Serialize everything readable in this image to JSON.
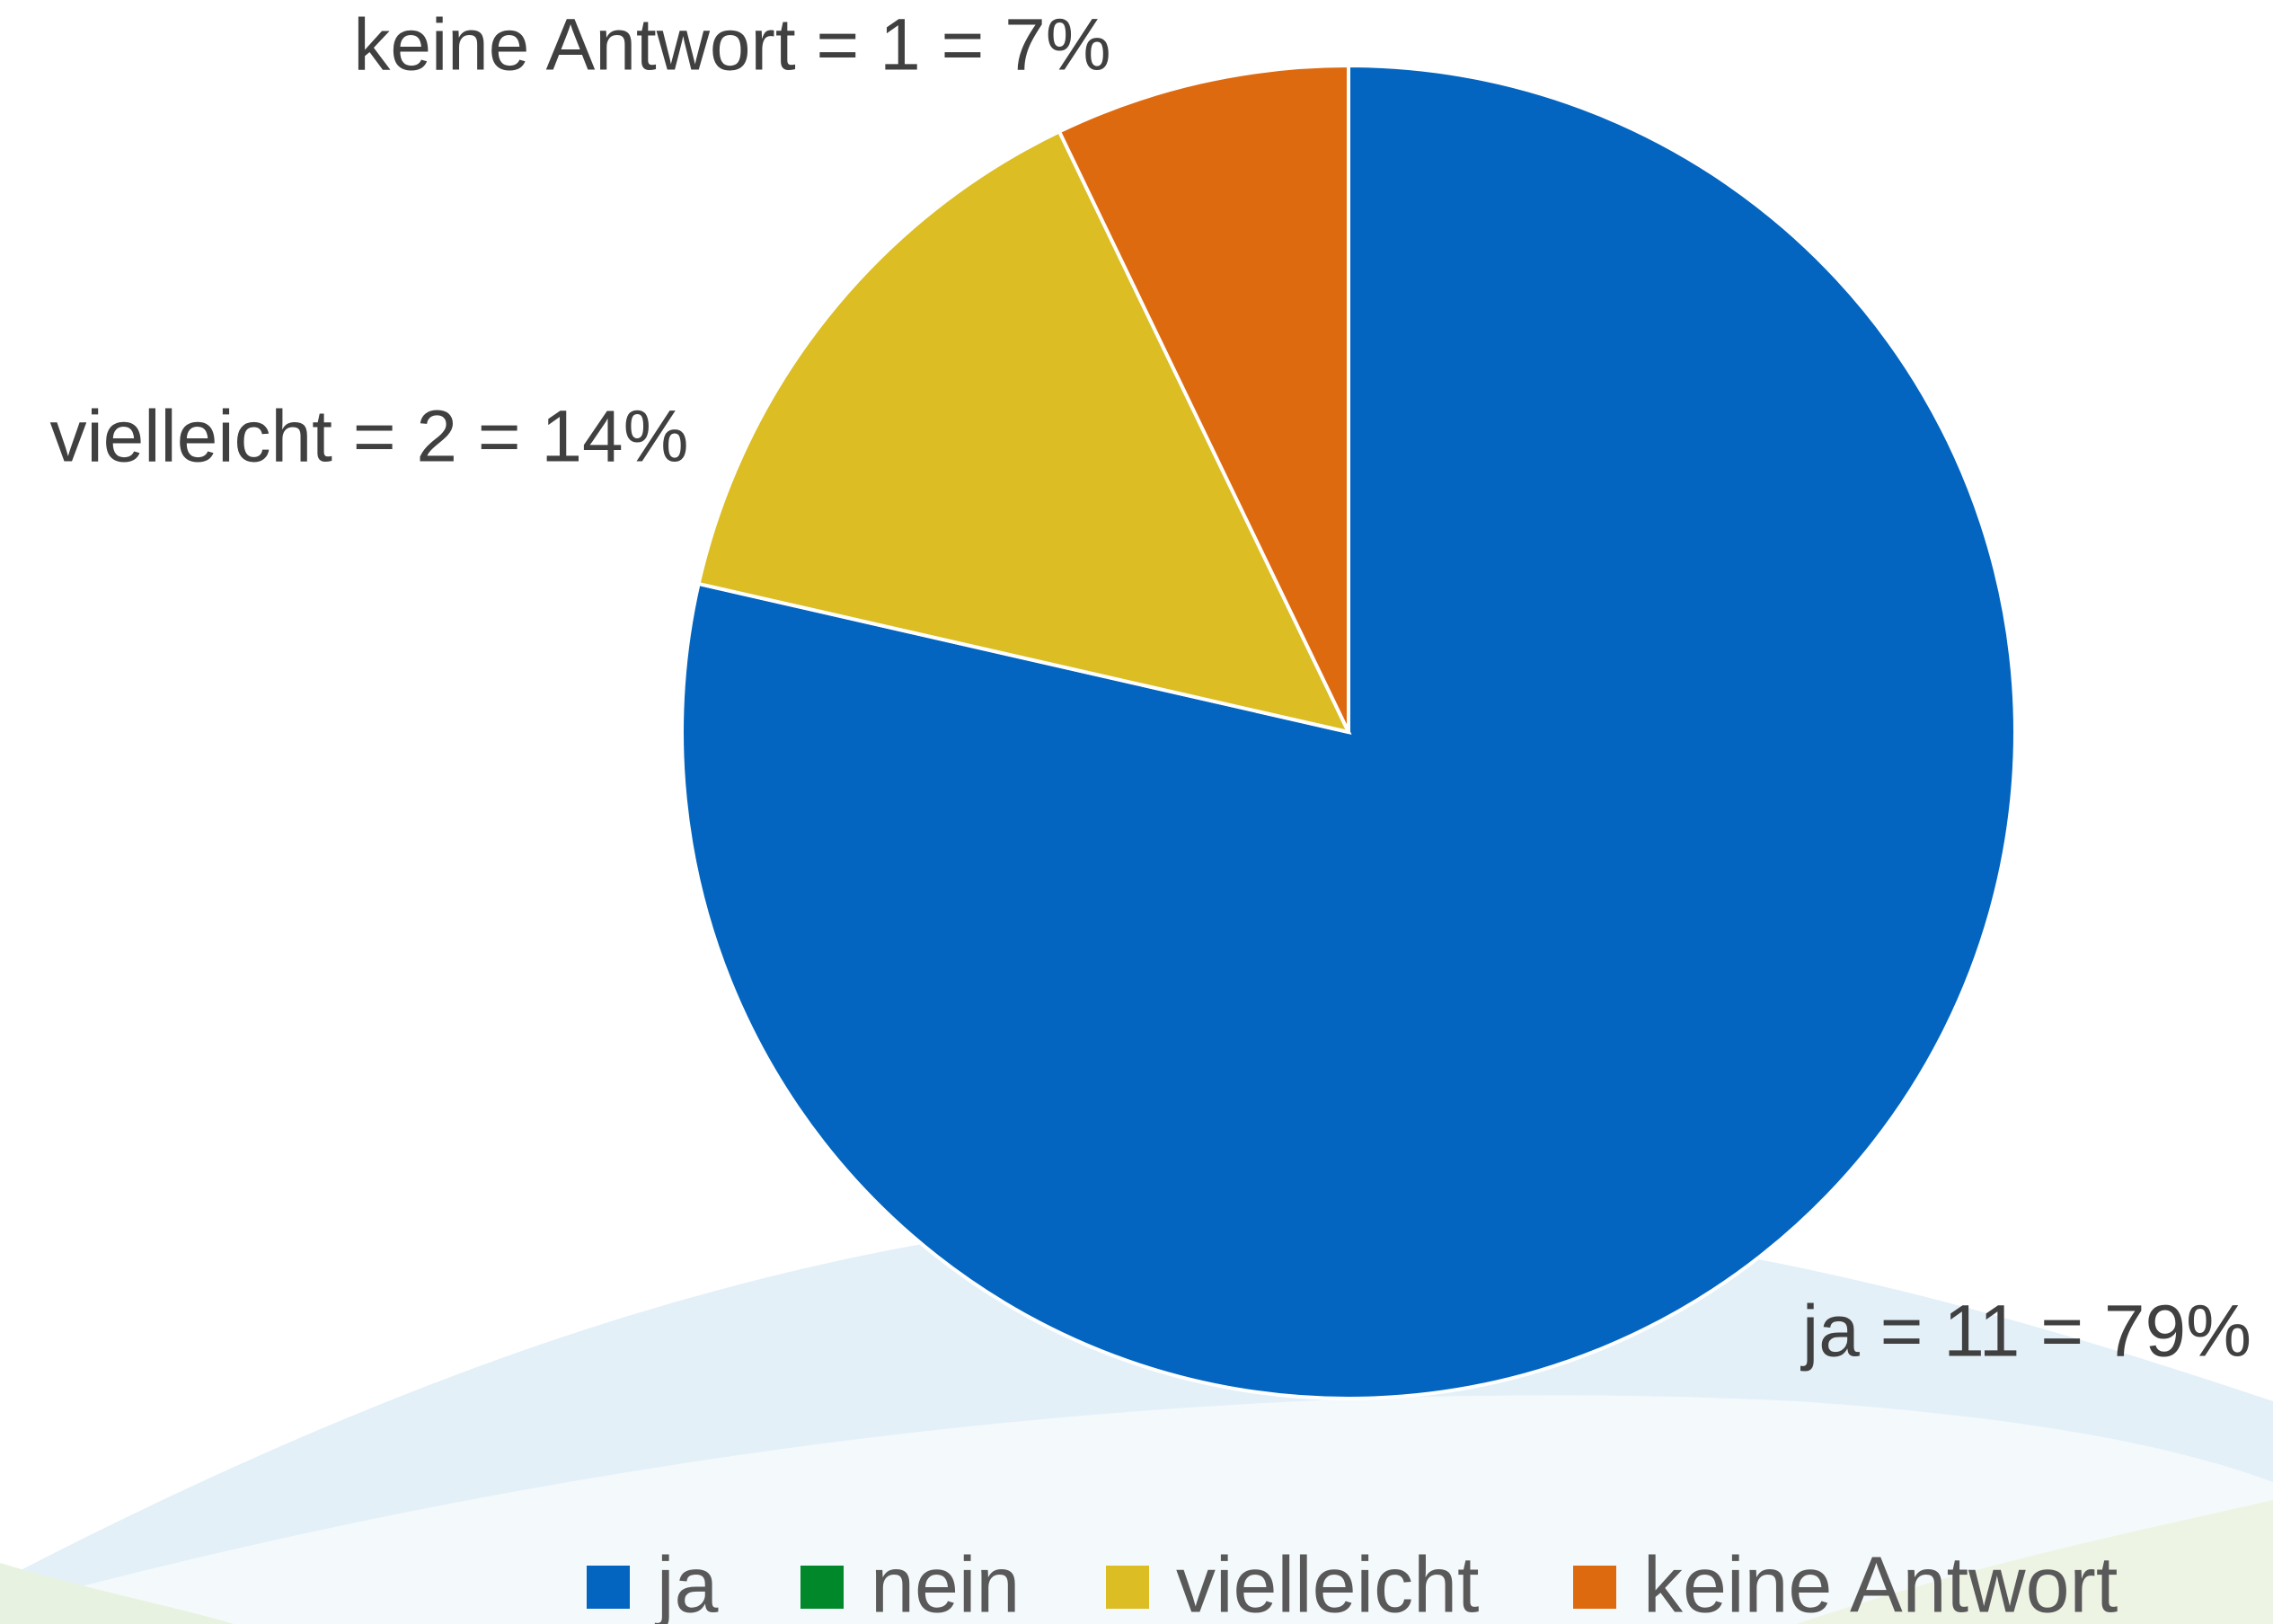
{
  "chart_data": {
    "type": "pie",
    "categories": [
      "ja",
      "nein",
      "vielleicht",
      "keine Antwort"
    ],
    "values": [
      11,
      0,
      2,
      1
    ],
    "value_labels": [
      "ja = 11 = 79%",
      null,
      "vielleicht = 2 = 14%",
      "keine Antwort = 1 = 7%"
    ],
    "colors": [
      "#0365c0",
      "#00882b",
      "#dcbd23",
      "#de6a10"
    ],
    "legend": "bottom"
  }
}
